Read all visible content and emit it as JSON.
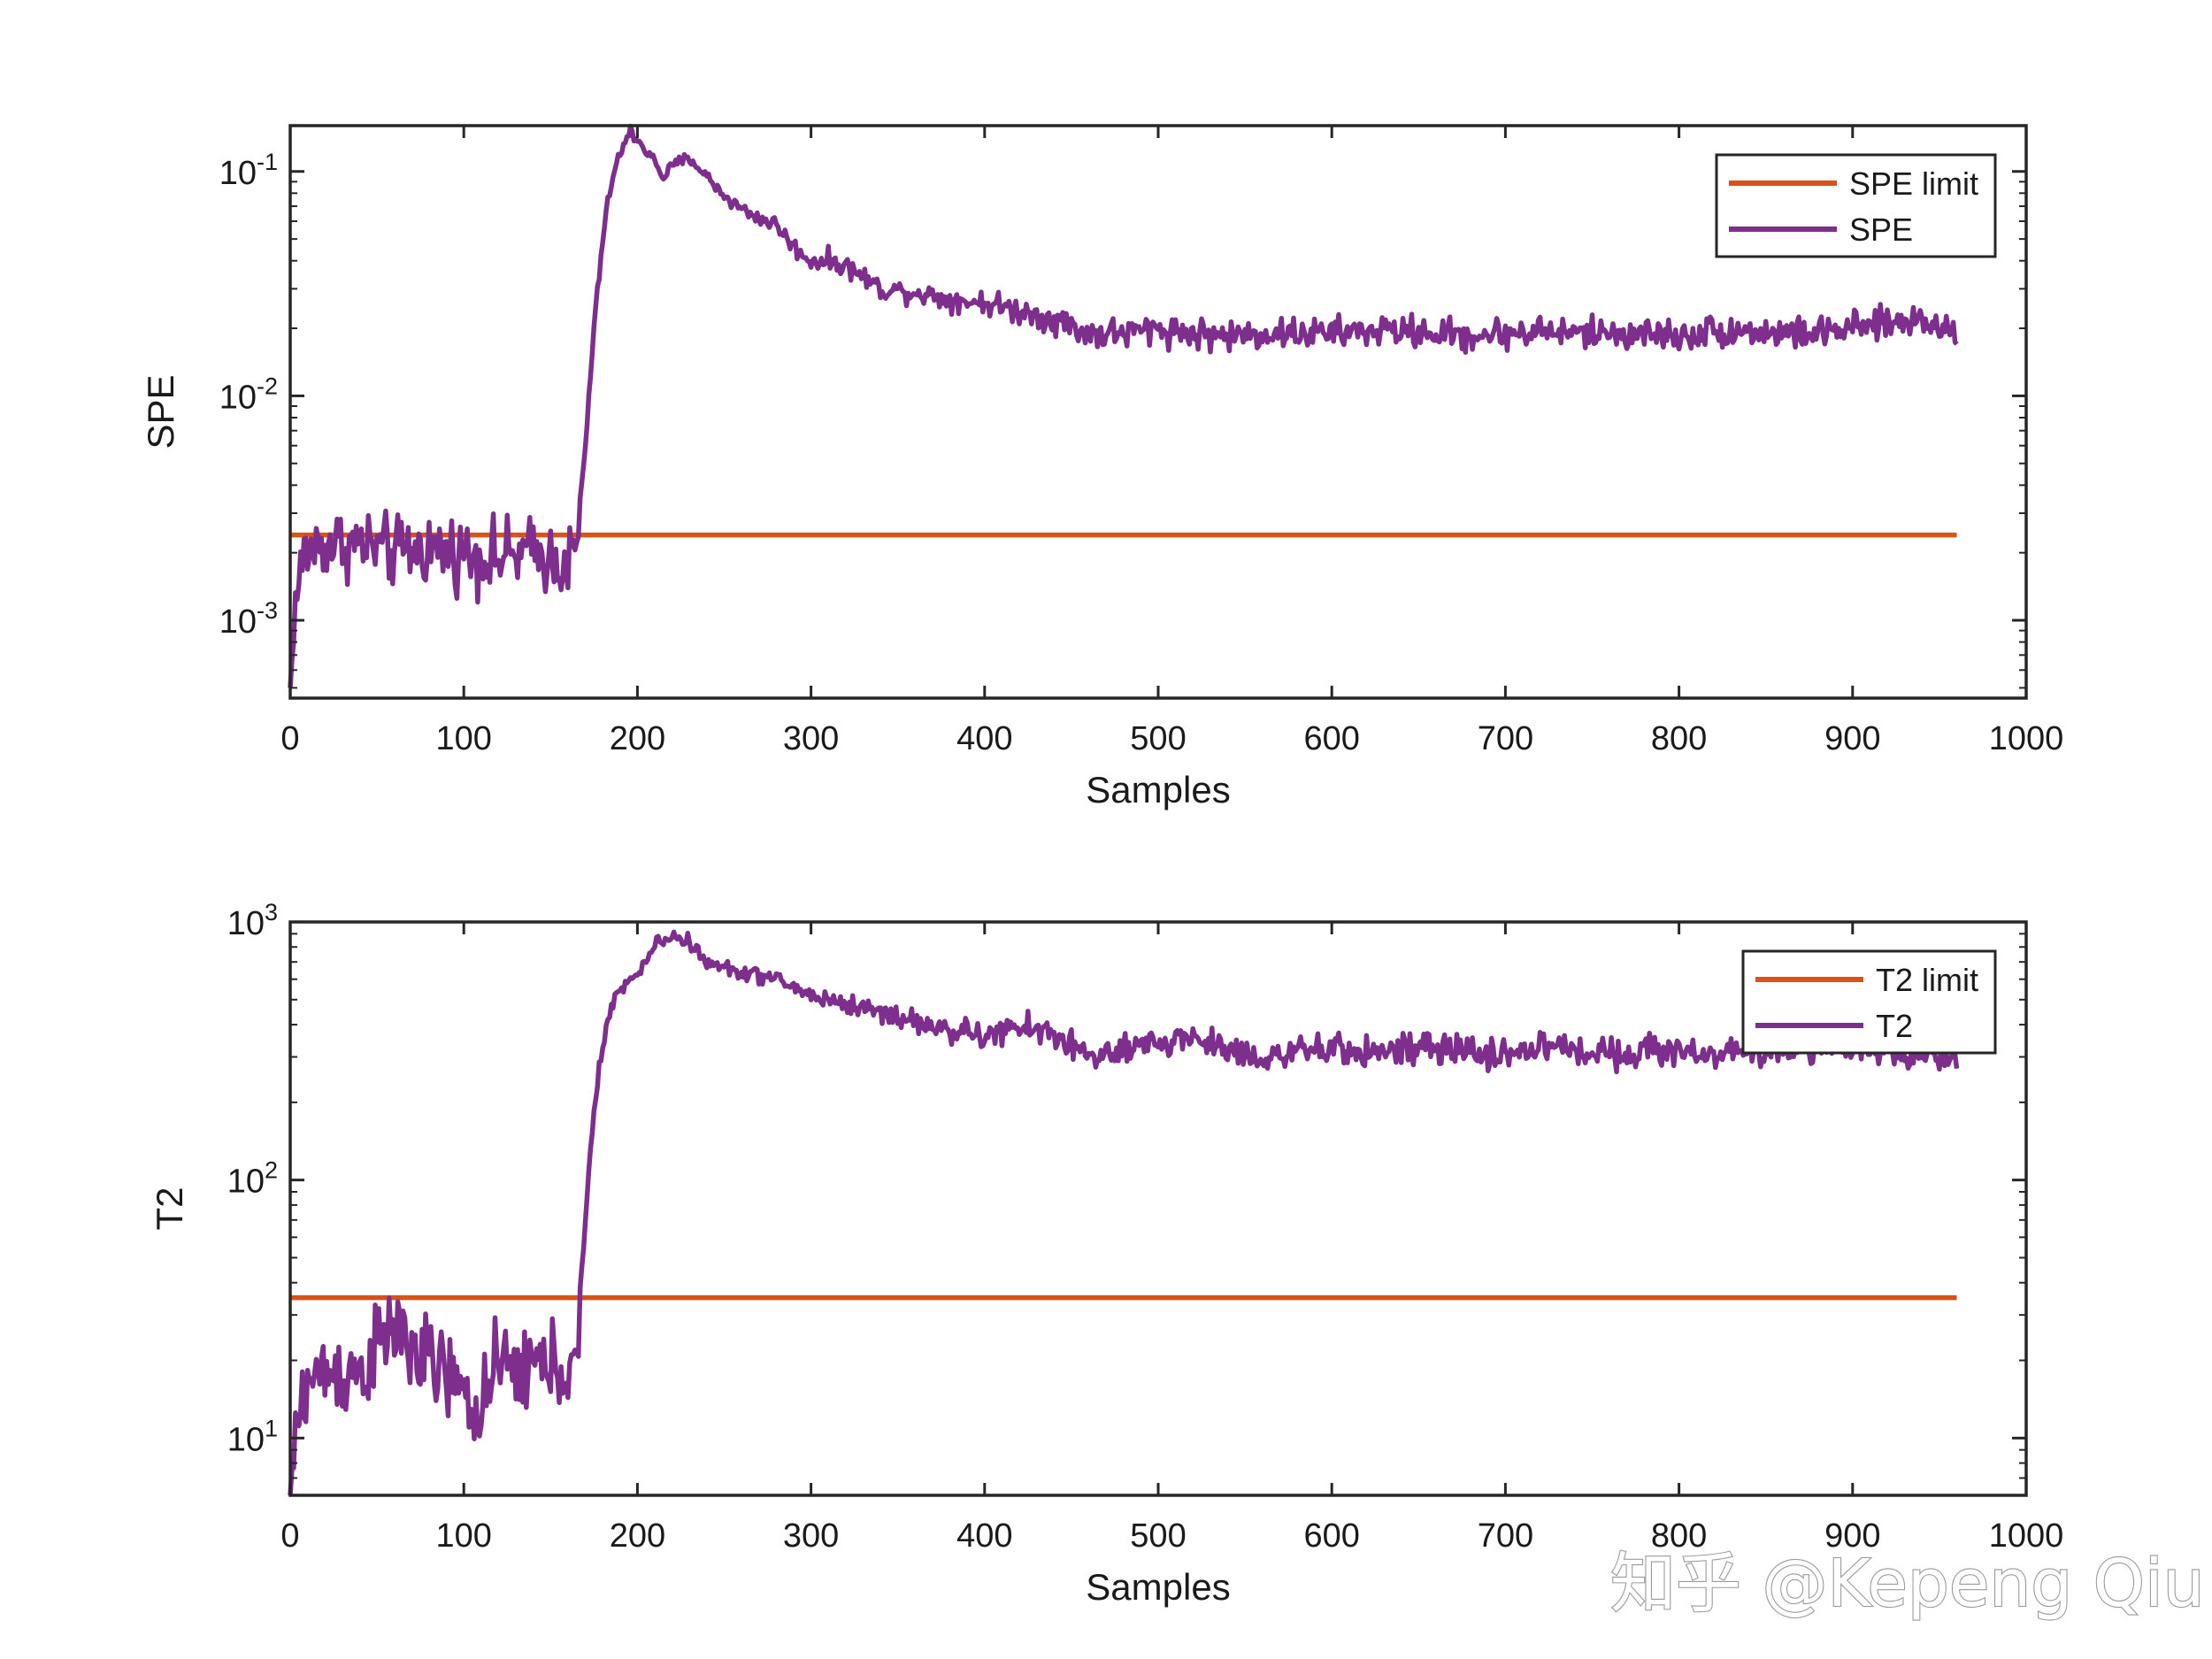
{
  "watermark": "知乎 @Kepeng Qiu",
  "colors": {
    "limit": "#D95319",
    "statistic": "#7E2F8E",
    "axes": "#262626"
  },
  "chart_data": [
    {
      "type": "line",
      "title": "",
      "xlabel": "Samples",
      "ylabel": "SPE",
      "yscale": "log",
      "xlim": [
        0,
        1000
      ],
      "ylim": [
        0.00045,
        0.16
      ],
      "xticks": [
        "0",
        "100",
        "200",
        "300",
        "400",
        "500",
        "600",
        "700",
        "800",
        "900",
        "1000"
      ],
      "yticks": [
        {
          "value": 0.001,
          "label": "10",
          "exp": "-3"
        },
        {
          "value": 0.01,
          "label": "10",
          "exp": "-2"
        },
        {
          "value": 0.1,
          "label": "10",
          "exp": "-1"
        }
      ],
      "legend": "top-right",
      "series": [
        {
          "name": "SPE limit",
          "kind": "limit",
          "x": [
            0,
            960
          ],
          "y": [
            0.0024,
            0.0024
          ]
        },
        {
          "name": "SPE",
          "kind": "statistic",
          "keypoints": [
            [
              0,
              0.0005
            ],
            [
              3,
              0.0012
            ],
            [
              8,
              0.002
            ],
            [
              20,
              0.0022
            ],
            [
              40,
              0.0022
            ],
            [
              60,
              0.002
            ],
            [
              80,
              0.0021
            ],
            [
              100,
              0.002
            ],
            [
              120,
              0.0019
            ],
            [
              140,
              0.002
            ],
            [
              160,
              0.0018
            ],
            [
              165,
              0.002
            ],
            [
              170,
              0.006
            ],
            [
              175,
              0.02
            ],
            [
              180,
              0.05
            ],
            [
              185,
              0.09
            ],
            [
              190,
              0.12
            ],
            [
              196,
              0.15
            ],
            [
              200,
              0.14
            ],
            [
              210,
              0.11
            ],
            [
              215,
              0.095
            ],
            [
              222,
              0.108
            ],
            [
              230,
              0.115
            ],
            [
              240,
              0.095
            ],
            [
              250,
              0.078
            ],
            [
              260,
              0.068
            ],
            [
              270,
              0.062
            ],
            [
              280,
              0.058
            ],
            [
              290,
              0.046
            ],
            [
              300,
              0.04
            ],
            [
              310,
              0.04
            ],
            [
              320,
              0.038
            ],
            [
              330,
              0.034
            ],
            [
              340,
              0.03
            ],
            [
              360,
              0.029
            ],
            [
              380,
              0.027
            ],
            [
              400,
              0.026
            ],
            [
              420,
              0.024
            ],
            [
              440,
              0.022
            ],
            [
              460,
              0.019
            ],
            [
              480,
              0.019
            ],
            [
              500,
              0.02
            ],
            [
              520,
              0.019
            ],
            [
              540,
              0.0185
            ],
            [
              560,
              0.019
            ],
            [
              580,
              0.019
            ],
            [
              600,
              0.019
            ],
            [
              620,
              0.0195
            ],
            [
              640,
              0.0195
            ],
            [
              660,
              0.019
            ],
            [
              680,
              0.0185
            ],
            [
              700,
              0.019
            ],
            [
              720,
              0.0195
            ],
            [
              740,
              0.019
            ],
            [
              760,
              0.019
            ],
            [
              780,
              0.019
            ],
            [
              800,
              0.0185
            ],
            [
              820,
              0.0195
            ],
            [
              840,
              0.0195
            ],
            [
              860,
              0.019
            ],
            [
              880,
              0.019
            ],
            [
              900,
              0.02
            ],
            [
              920,
              0.021
            ],
            [
              940,
              0.022
            ],
            [
              960,
              0.019
            ]
          ],
          "noise": [
            [
              0,
              0
            ],
            [
              5,
              0.18
            ],
            [
              165,
              0.18
            ],
            [
              172,
              0.04
            ],
            [
              240,
              0.03
            ],
            [
              300,
              0.05
            ],
            [
              400,
              0.06
            ],
            [
              450,
              0.08
            ],
            [
              960,
              0.08
            ]
          ]
        }
      ]
    },
    {
      "type": "line",
      "title": "",
      "xlabel": "Samples",
      "ylabel": "T2",
      "yscale": "log",
      "xlim": [
        0,
        1000
      ],
      "ylim": [
        6,
        1000
      ],
      "xticks": [
        "0",
        "100",
        "200",
        "300",
        "400",
        "500",
        "600",
        "700",
        "800",
        "900",
        "1000"
      ],
      "yticks": [
        {
          "value": 10,
          "label": "10",
          "exp": "1"
        },
        {
          "value": 100,
          "label": "10",
          "exp": "2"
        },
        {
          "value": 1000,
          "label": "10",
          "exp": "3"
        }
      ],
      "legend": "top-right",
      "series": [
        {
          "name": "T2 limit",
          "kind": "limit",
          "x": [
            0,
            960
          ],
          "y": [
            35,
            35
          ]
        },
        {
          "name": "T2",
          "kind": "statistic",
          "keypoints": [
            [
              0,
              6
            ],
            [
              3,
              10
            ],
            [
              8,
              16
            ],
            [
              20,
              18
            ],
            [
              40,
              18
            ],
            [
              55,
              24
            ],
            [
              60,
              27
            ],
            [
              70,
              22
            ],
            [
              80,
              19
            ],
            [
              90,
              18
            ],
            [
              100,
              14
            ],
            [
              105,
              12
            ],
            [
              110,
              15
            ],
            [
              120,
              18
            ],
            [
              140,
              19
            ],
            [
              160,
              19
            ],
            [
              165,
              18
            ],
            [
              168,
              40
            ],
            [
              172,
              110
            ],
            [
              178,
              280
            ],
            [
              185,
              470
            ],
            [
              190,
              560
            ],
            [
              200,
              620
            ],
            [
              205,
              700
            ],
            [
              210,
              820
            ],
            [
              220,
              880
            ],
            [
              230,
              840
            ],
            [
              240,
              690
            ],
            [
              260,
              640
            ],
            [
              280,
              600
            ],
            [
              300,
              520
            ],
            [
              320,
              480
            ],
            [
              340,
              450
            ],
            [
              360,
              410
            ],
            [
              380,
              380
            ],
            [
              400,
              360
            ],
            [
              420,
              390
            ],
            [
              440,
              370
            ],
            [
              460,
              300
            ],
            [
              480,
              310
            ],
            [
              500,
              340
            ],
            [
              520,
              360
            ],
            [
              540,
              320
            ],
            [
              560,
              300
            ],
            [
              580,
              310
            ],
            [
              600,
              320
            ],
            [
              620,
              315
            ],
            [
              640,
              320
            ],
            [
              660,
              320
            ],
            [
              680,
              315
            ],
            [
              700,
              305
            ],
            [
              720,
              330
            ],
            [
              740,
              320
            ],
            [
              760,
              310
            ],
            [
              780,
              320
            ],
            [
              800,
              315
            ],
            [
              820,
              310
            ],
            [
              840,
              310
            ],
            [
              860,
              320
            ],
            [
              880,
              330
            ],
            [
              900,
              315
            ],
            [
              920,
              310
            ],
            [
              940,
              310
            ],
            [
              960,
              300
            ]
          ],
          "noise": [
            [
              0,
              0
            ],
            [
              5,
              0.2
            ],
            [
              165,
              0.2
            ],
            [
              172,
              0.03
            ],
            [
              240,
              0.03
            ],
            [
              300,
              0.04
            ],
            [
              400,
              0.06
            ],
            [
              450,
              0.07
            ],
            [
              960,
              0.07
            ]
          ]
        }
      ]
    }
  ]
}
